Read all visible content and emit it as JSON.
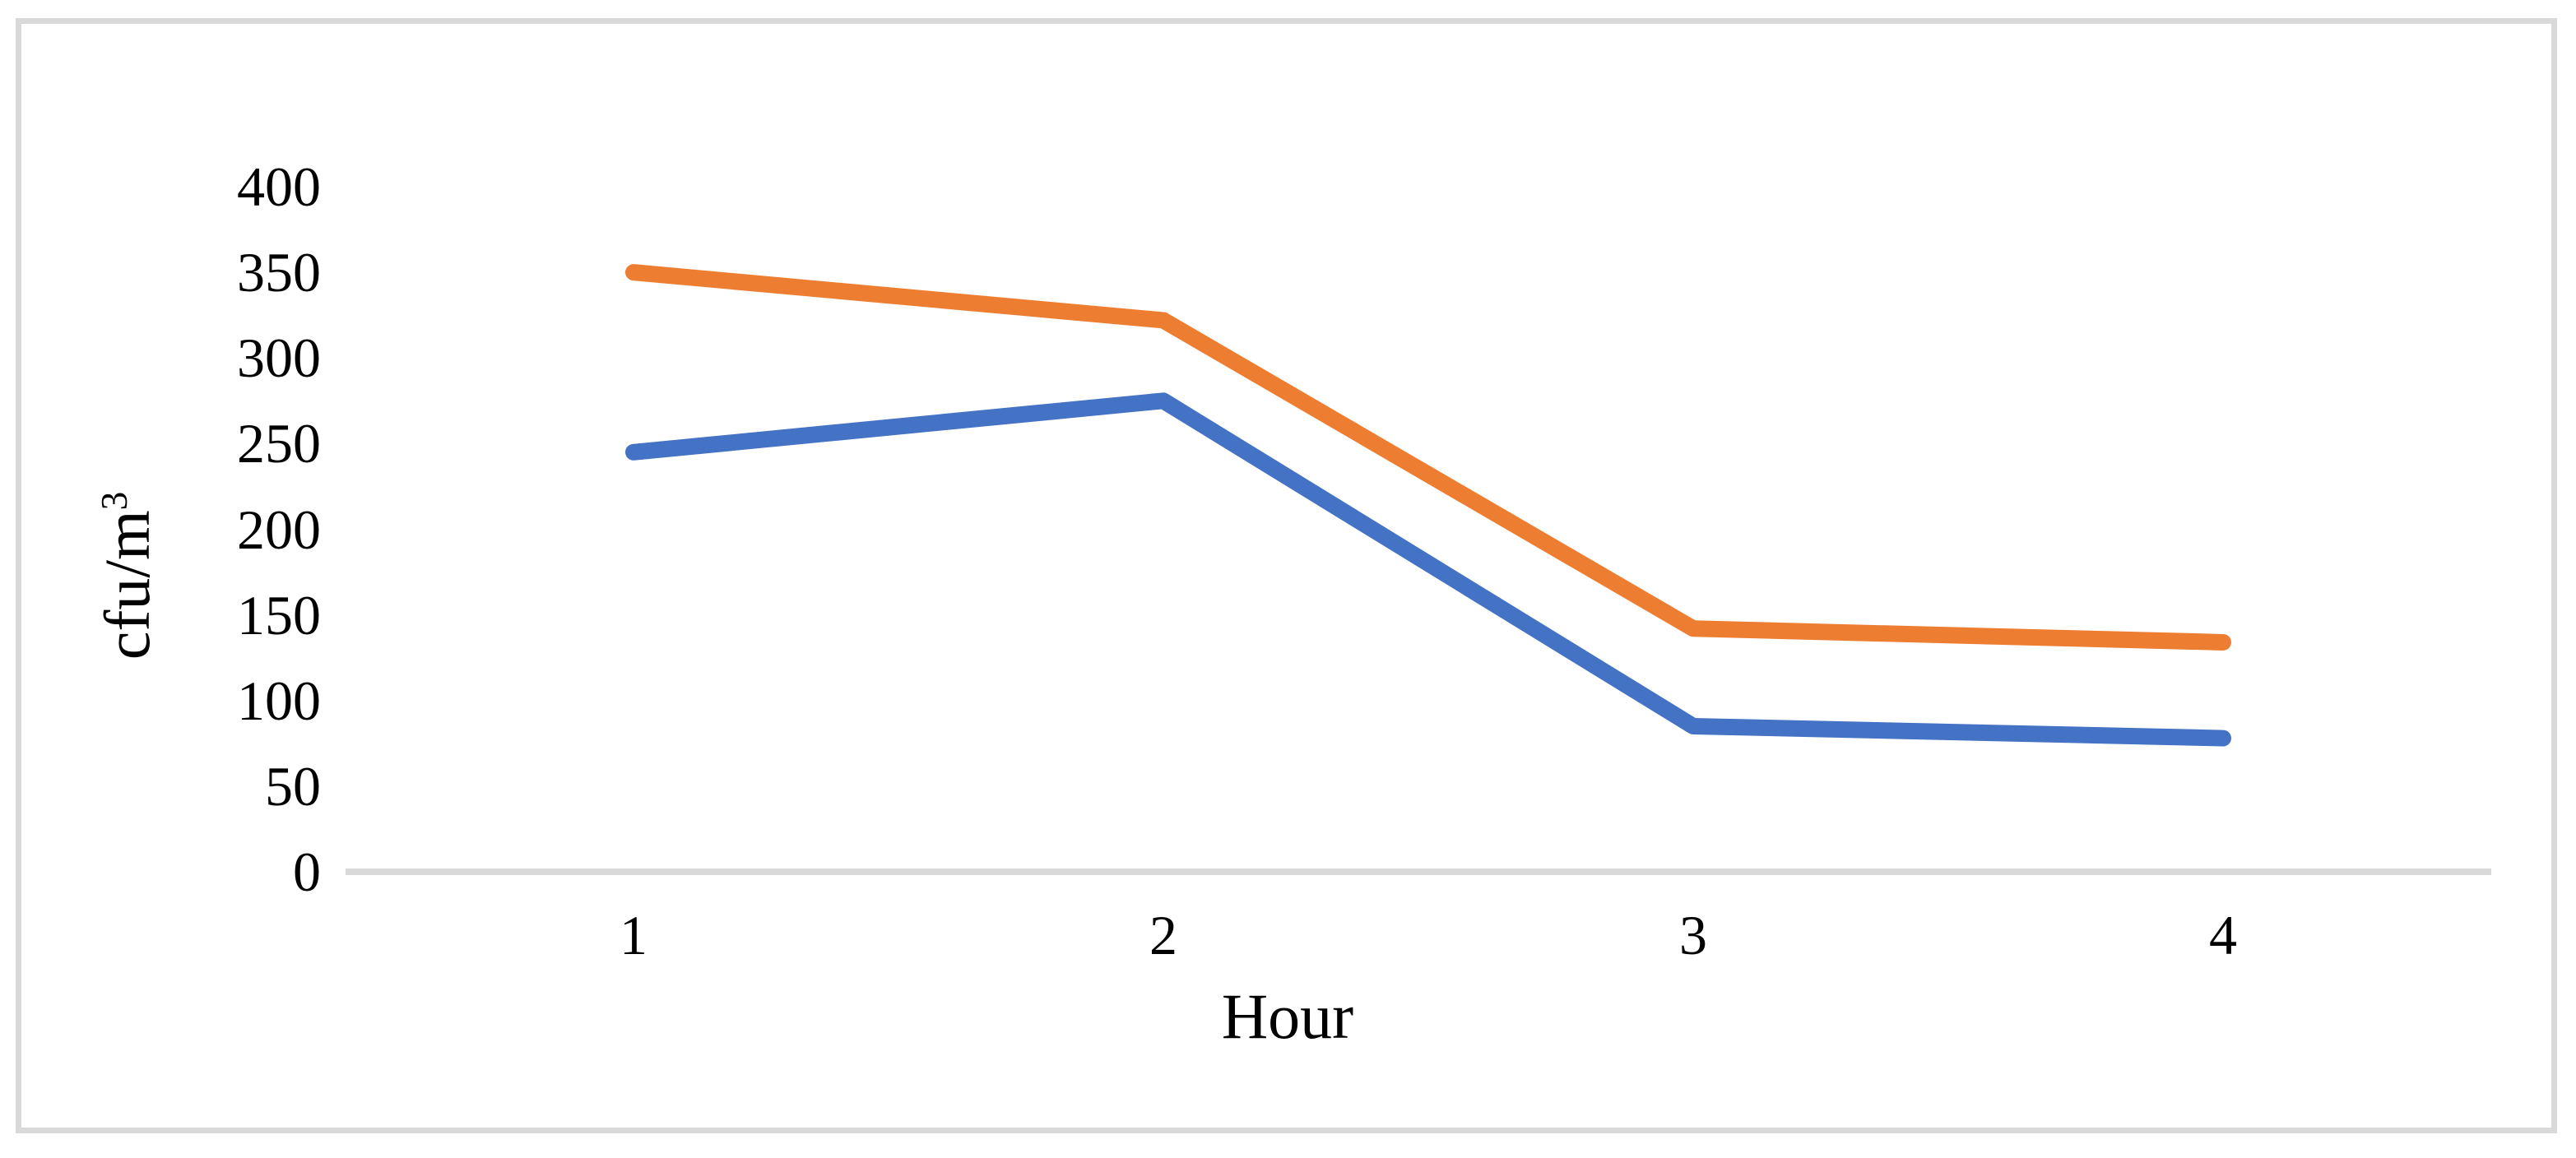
{
  "chart_data": {
    "type": "line",
    "x": [
      1,
      2,
      3,
      4
    ],
    "x_tick_labels": [
      "1",
      "2",
      "3",
      "4"
    ],
    "y_ticks": [
      0,
      50,
      100,
      150,
      200,
      250,
      300,
      350,
      400
    ],
    "ylim": [
      0,
      400
    ],
    "series": [
      {
        "name": "blue-series",
        "color": "#4472C4",
        "values": [
          245,
          275,
          85,
          78
        ]
      },
      {
        "name": "orange-series",
        "color": "#ED7D31",
        "values": [
          350,
          322,
          142,
          134
        ]
      }
    ],
    "title": "",
    "xlabel": "Hour",
    "ylabel": "cfu/m³",
    "ylabel_base": "cfu/m",
    "ylabel_exponent": "3",
    "grid": false,
    "legend_position": "none",
    "axis_line_color": "#D9D9D9",
    "frame_border_color": "#D9D9D9",
    "text_color": "#000000",
    "background_color": "#FFFFFF"
  }
}
